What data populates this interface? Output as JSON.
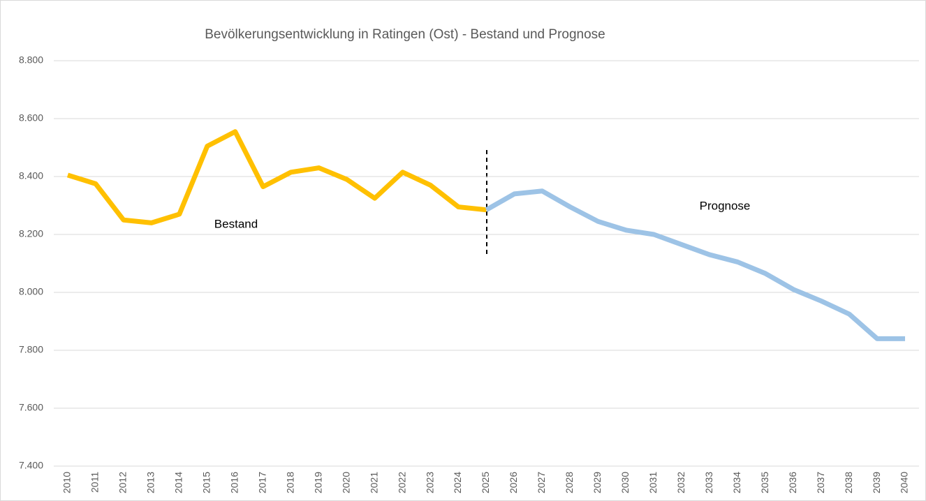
{
  "chart_data": {
    "type": "line",
    "title": "Bevölkerungsentwicklung  in Ratingen (Ost) - Bestand und Prognose",
    "categories": [
      "2010",
      "2011",
      "2012",
      "2013",
      "2014",
      "2015",
      "2016",
      "2017",
      "2018",
      "2019",
      "2020",
      "2021",
      "2022",
      "2023",
      "2024",
      "2025",
      "2026",
      "2027",
      "2028",
      "2029",
      "2030",
      "2031",
      "2032",
      "2033",
      "2034",
      "2035",
      "2036",
      "2037",
      "2038",
      "2039",
      "2040"
    ],
    "series": [
      {
        "name": "Bestand",
        "color": "#ffc000",
        "values": [
          8405,
          8375,
          8250,
          8240,
          8270,
          8505,
          8555,
          8365,
          8415,
          8430,
          8390,
          8325,
          8415,
          8370,
          8295,
          8285,
          null,
          null,
          null,
          null,
          null,
          null,
          null,
          null,
          null,
          null,
          null,
          null,
          null,
          null,
          null
        ]
      },
      {
        "name": "Prognose",
        "color": "#9dc3e6",
        "values": [
          null,
          null,
          null,
          null,
          null,
          null,
          null,
          null,
          null,
          null,
          null,
          null,
          null,
          null,
          null,
          8285,
          8340,
          8350,
          8295,
          8245,
          8215,
          8200,
          8165,
          8130,
          8105,
          8065,
          8010,
          7970,
          7925,
          7840,
          7840
        ]
      }
    ],
    "ylim": [
      7400,
      8800
    ],
    "yticks": [
      {
        "value": 7400,
        "label": "7.400"
      },
      {
        "value": 7600,
        "label": "7.600"
      },
      {
        "value": 7800,
        "label": "7.800"
      },
      {
        "value": 8000,
        "label": "8.000"
      },
      {
        "value": 8200,
        "label": "8.200"
      },
      {
        "value": 8400,
        "label": "8.400"
      },
      {
        "value": 8600,
        "label": "8.600"
      },
      {
        "value": 8800,
        "label": "8.800"
      }
    ],
    "grid": true
  }
}
